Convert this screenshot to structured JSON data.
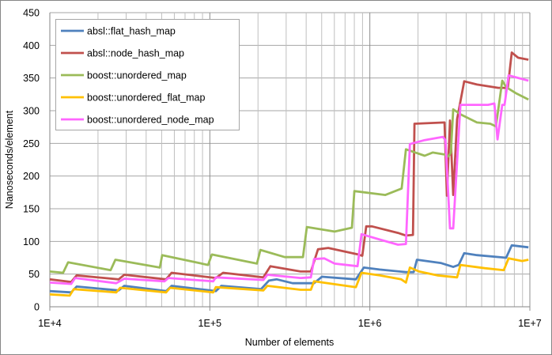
{
  "chart_data": {
    "type": "line",
    "title": "",
    "xlabel": "Number of elements",
    "ylabel": "Nanoseconds/element",
    "xscale": "log",
    "xlim": [
      10000,
      10000000
    ],
    "ylim": [
      0,
      450
    ],
    "x_ticks": [
      "1E+4",
      "1E+5",
      "1E+6",
      "1E+7"
    ],
    "y_ticks": [
      "0",
      "50",
      "100",
      "150",
      "200",
      "250",
      "300",
      "350",
      "400",
      "450"
    ],
    "grid": true,
    "legend_position": "top-left",
    "series": [
      {
        "name": "absl::flat_hash_map",
        "color": "#4f81bd",
        "points": [
          [
            10000,
            24
          ],
          [
            13600,
            22
          ],
          [
            14700,
            31
          ],
          [
            26900,
            25
          ],
          [
            29200,
            32
          ],
          [
            53300,
            24
          ],
          [
            57700,
            32
          ],
          [
            109000,
            24
          ],
          [
            118000,
            32
          ],
          [
            209000,
            27
          ],
          [
            234000,
            40
          ],
          [
            262000,
            42
          ],
          [
            329000,
            36
          ],
          [
            448000,
            36
          ],
          [
            502000,
            46
          ],
          [
            818000,
            42
          ],
          [
            917000,
            60
          ],
          [
            1150000,
            57
          ],
          [
            1680000,
            53
          ],
          [
            1880000,
            53
          ],
          [
            1970000,
            72
          ],
          [
            2770000,
            67
          ],
          [
            3320000,
            61
          ],
          [
            3590000,
            64
          ],
          [
            3890000,
            82
          ],
          [
            4670000,
            79
          ],
          [
            7110000,
            75
          ],
          [
            7710000,
            94
          ],
          [
            9800000,
            91
          ]
        ]
      },
      {
        "name": "absl::node_hash_map",
        "color": "#c0504d",
        "points": [
          [
            10000,
            42
          ],
          [
            13600,
            38
          ],
          [
            14700,
            48
          ],
          [
            26900,
            42
          ],
          [
            29200,
            49
          ],
          [
            53300,
            42
          ],
          [
            57700,
            52
          ],
          [
            109000,
            44
          ],
          [
            121000,
            52
          ],
          [
            216000,
            45
          ],
          [
            239000,
            62
          ],
          [
            369000,
            54
          ],
          [
            428000,
            54
          ],
          [
            474000,
            88
          ],
          [
            550000,
            90
          ],
          [
            847000,
            80
          ],
          [
            897000,
            78
          ],
          [
            949000,
            123
          ],
          [
            1030000,
            123
          ],
          [
            1500000,
            113
          ],
          [
            1680000,
            109
          ],
          [
            1860000,
            110
          ],
          [
            1900000,
            280
          ],
          [
            2930000,
            282
          ],
          [
            3030000,
            170
          ],
          [
            3170000,
            285
          ],
          [
            3320000,
            171
          ],
          [
            3510000,
            287
          ],
          [
            3890000,
            345
          ],
          [
            4670000,
            340
          ],
          [
            6350000,
            335
          ],
          [
            7280000,
            335
          ],
          [
            7710000,
            389
          ],
          [
            8450000,
            381
          ],
          [
            9800000,
            378
          ]
        ]
      },
      {
        "name": "boost::unordered_map",
        "color": "#9bbb59",
        "points": [
          [
            10000,
            54
          ],
          [
            12100,
            52
          ],
          [
            13000,
            68
          ],
          [
            24000,
            56
          ],
          [
            25700,
            72
          ],
          [
            48700,
            60
          ],
          [
            50400,
            79
          ],
          [
            97500,
            64
          ],
          [
            103000,
            80
          ],
          [
            197000,
            66
          ],
          [
            207000,
            87
          ],
          [
            294000,
            76
          ],
          [
            382000,
            76
          ],
          [
            404000,
            122
          ],
          [
            602000,
            115
          ],
          [
            773000,
            121
          ],
          [
            800000,
            177
          ],
          [
            1250000,
            171
          ],
          [
            1580000,
            181
          ],
          [
            1680000,
            241
          ],
          [
            2200000,
            231
          ],
          [
            2470000,
            236
          ],
          [
            2930000,
            233
          ],
          [
            3100000,
            230
          ],
          [
            3210000,
            236
          ],
          [
            3320000,
            302
          ],
          [
            3720000,
            294
          ],
          [
            4670000,
            282
          ],
          [
            5660000,
            280
          ],
          [
            6140000,
            276
          ],
          [
            6720000,
            346
          ],
          [
            7110000,
            336
          ],
          [
            8160000,
            327
          ],
          [
            9800000,
            317
          ]
        ]
      },
      {
        "name": "boost::unordered_flat_map",
        "color": "#ffc000",
        "points": [
          [
            10000,
            19
          ],
          [
            13300,
            17
          ],
          [
            14100,
            27
          ],
          [
            26000,
            22
          ],
          [
            27500,
            29
          ],
          [
            53300,
            22
          ],
          [
            56400,
            29
          ],
          [
            105000,
            22
          ],
          [
            109000,
            30
          ],
          [
            216000,
            25
          ],
          [
            229000,
            32
          ],
          [
            369000,
            26
          ],
          [
            428000,
            26
          ],
          [
            448000,
            39
          ],
          [
            818000,
            30
          ],
          [
            887000,
            52
          ],
          [
            1150000,
            48
          ],
          [
            1570000,
            42
          ],
          [
            1680000,
            37
          ],
          [
            1780000,
            60
          ],
          [
            2030000,
            54
          ],
          [
            2640000,
            48
          ],
          [
            3510000,
            45
          ],
          [
            3680000,
            64
          ],
          [
            5230000,
            59
          ],
          [
            6870000,
            56
          ],
          [
            7360000,
            74
          ],
          [
            8940000,
            70
          ],
          [
            9800000,
            72
          ]
        ]
      },
      {
        "name": "boost::unordered_node_map",
        "color": "#ff66ff",
        "points": [
          [
            10000,
            37
          ],
          [
            13600,
            35
          ],
          [
            14400,
            44
          ],
          [
            26000,
            36
          ],
          [
            29200,
            43
          ],
          [
            52100,
            39
          ],
          [
            55100,
            44
          ],
          [
            105000,
            39
          ],
          [
            109000,
            45
          ],
          [
            216000,
            41
          ],
          [
            229000,
            49
          ],
          [
            369000,
            44
          ],
          [
            428000,
            45
          ],
          [
            448000,
            73
          ],
          [
            519000,
            74
          ],
          [
            602000,
            66
          ],
          [
            838000,
            62
          ],
          [
            887000,
            111
          ],
          [
            1150000,
            103
          ],
          [
            1500000,
            95
          ],
          [
            1680000,
            96
          ],
          [
            1780000,
            249
          ],
          [
            2200000,
            255
          ],
          [
            2860000,
            260
          ],
          [
            2970000,
            255
          ],
          [
            3170000,
            120
          ],
          [
            3320000,
            120
          ],
          [
            3680000,
            309
          ],
          [
            5480000,
            309
          ],
          [
            6000000,
            311
          ],
          [
            6280000,
            256
          ],
          [
            6720000,
            309
          ],
          [
            6950000,
            309
          ],
          [
            7360000,
            354
          ],
          [
            9800000,
            346
          ]
        ]
      }
    ]
  }
}
